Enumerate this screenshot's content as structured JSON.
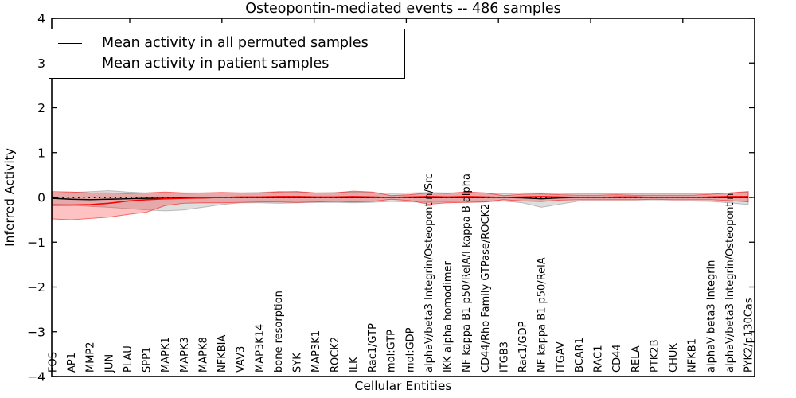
{
  "chart_data": {
    "type": "line",
    "title": "Osteopontin-mediated events -- 486 samples",
    "xlabel": "Cellular Entities",
    "ylabel": "Inferred Activity",
    "ylim": [
      -4,
      4
    ],
    "grid": false,
    "legend_position": "upper left",
    "legend": [
      {
        "label": "Mean activity in all permuted samples",
        "color": "#000000"
      },
      {
        "label": "Mean activity in patient samples",
        "color": "#ff0000"
      }
    ],
    "yticks": {
      "values": [
        4,
        3,
        2,
        1,
        0,
        -1,
        -2,
        -3,
        -4
      ],
      "labels": [
        "4",
        "3",
        "2",
        "1",
        "0",
        "−1",
        "−2",
        "−3",
        "−4"
      ]
    },
    "baseline": {
      "value": 0,
      "style": "dotted",
      "color": "#000000"
    },
    "entities": [
      "FOS",
      "AP1",
      "MMP2",
      "JUN",
      "PLAU",
      "SPP1",
      "MAPK1",
      "MAPK3",
      "MAPK8",
      "NFKBIA",
      "VAV3",
      "MAP3K14",
      "bone resorption",
      "SYK",
      "MAP3K1",
      "ROCK2",
      "ILK",
      "Rac1/GTP",
      "mol:GTP",
      "mol:GDP",
      "alphaV/beta3 Integrin/Osteopontin/Src",
      "IKK alpha homodimer",
      "NF kappa B1 p50/RelA/I kappa B alpha",
      "CD44/Rho Family GTPase/ROCK2",
      "ITGB3",
      "Rac1/GDP",
      "NF kappa B1 p50/RelA",
      "ITGAV",
      "BCAR1",
      "RAC1",
      "CD44",
      "RELA",
      "PTK2B",
      "CHUK",
      "NFKB1",
      "alphaV beta3 Integrin",
      "alphaV/beta3 Integrin/Osteopontin",
      "PYK2/p130Cas"
    ],
    "series": [
      {
        "name": "Mean activity in all permuted samples",
        "color": "#000000",
        "values": [
          -0.02,
          -0.04,
          -0.05,
          -0.04,
          -0.03,
          -0.02,
          -0.02,
          -0.01,
          -0.01,
          0,
          0,
          0,
          0,
          0,
          0,
          0,
          0,
          0,
          0,
          0,
          0,
          0,
          0,
          0,
          0,
          -0.01,
          -0.03,
          -0.01,
          0,
          0,
          0,
          0,
          0,
          0,
          0,
          0,
          0,
          0
        ]
      },
      {
        "name": "Mean activity in patient samples",
        "color": "#ff0000",
        "values": [
          -0.17,
          -0.17,
          -0.16,
          -0.13,
          -0.08,
          -0.05,
          -0.03,
          -0.02,
          -0.01,
          0,
          0.01,
          0.01,
          0.02,
          0.02,
          0.01,
          0.01,
          0.02,
          0.01,
          0,
          0.01,
          0.02,
          0.01,
          0.02,
          0.01,
          0,
          0.01,
          0.02,
          0.01,
          0,
          0,
          0.01,
          0.01,
          0,
          0,
          0,
          0.01,
          0.02,
          0.02
        ]
      }
    ],
    "bands": [
      {
        "series": "permuted",
        "fill": "rgba(0,0,0,0.13)",
        "edge": "rgba(0,0,0,0.22)",
        "upper": [
          0.1,
          0.11,
          0.13,
          0.15,
          0.12,
          0.1,
          0.1,
          0.09,
          0.1,
          0.1,
          0.1,
          0.11,
          0.13,
          0.12,
          0.1,
          0.11,
          0.12,
          0.11,
          0.09,
          0.1,
          0.11,
          0.1,
          0.11,
          0.1,
          0.08,
          0.1,
          0.1,
          0.09,
          0.08,
          0.08,
          0.08,
          0.08,
          0.08,
          0.08,
          0.08,
          0.09,
          0.1,
          0.12
        ],
        "lower": [
          -0.15,
          -0.17,
          -0.2,
          -0.22,
          -0.25,
          -0.28,
          -0.3,
          -0.28,
          -0.22,
          -0.16,
          -0.12,
          -0.12,
          -0.13,
          -0.12,
          -0.11,
          -0.11,
          -0.12,
          -0.11,
          -0.09,
          -0.1,
          -0.11,
          -0.1,
          -0.11,
          -0.1,
          -0.08,
          -0.12,
          -0.22,
          -0.15,
          -0.08,
          -0.08,
          -0.08,
          -0.08,
          -0.08,
          -0.08,
          -0.08,
          -0.09,
          -0.12,
          -0.16
        ]
      },
      {
        "series": "patient",
        "fill": "rgba(255,0,0,0.24)",
        "edge": "rgba(255,0,0,0.55)",
        "upper": [
          0.13,
          0.12,
          0.1,
          0.1,
          0.09,
          0.1,
          0.12,
          0.1,
          0.1,
          0.11,
          0.1,
          0.1,
          0.12,
          0.13,
          0.1,
          0.1,
          0.14,
          0.12,
          0.04,
          0.06,
          0.1,
          0.09,
          0.12,
          0.1,
          0.04,
          0.07,
          0.08,
          0.06,
          0.05,
          0.05,
          0.06,
          0.05,
          0.05,
          0.05,
          0.05,
          0.07,
          0.1,
          0.13
        ],
        "lower": [
          -0.48,
          -0.5,
          -0.47,
          -0.44,
          -0.38,
          -0.33,
          -0.18,
          -0.13,
          -0.12,
          -0.12,
          -0.11,
          -0.1,
          -0.1,
          -0.11,
          -0.1,
          -0.09,
          -0.1,
          -0.09,
          -0.04,
          -0.07,
          -0.15,
          -0.12,
          -0.11,
          -0.1,
          -0.05,
          -0.08,
          -0.09,
          -0.06,
          -0.05,
          -0.05,
          -0.05,
          -0.05,
          -0.04,
          -0.05,
          -0.05,
          -0.05,
          -0.07,
          -0.1
        ]
      }
    ]
  }
}
